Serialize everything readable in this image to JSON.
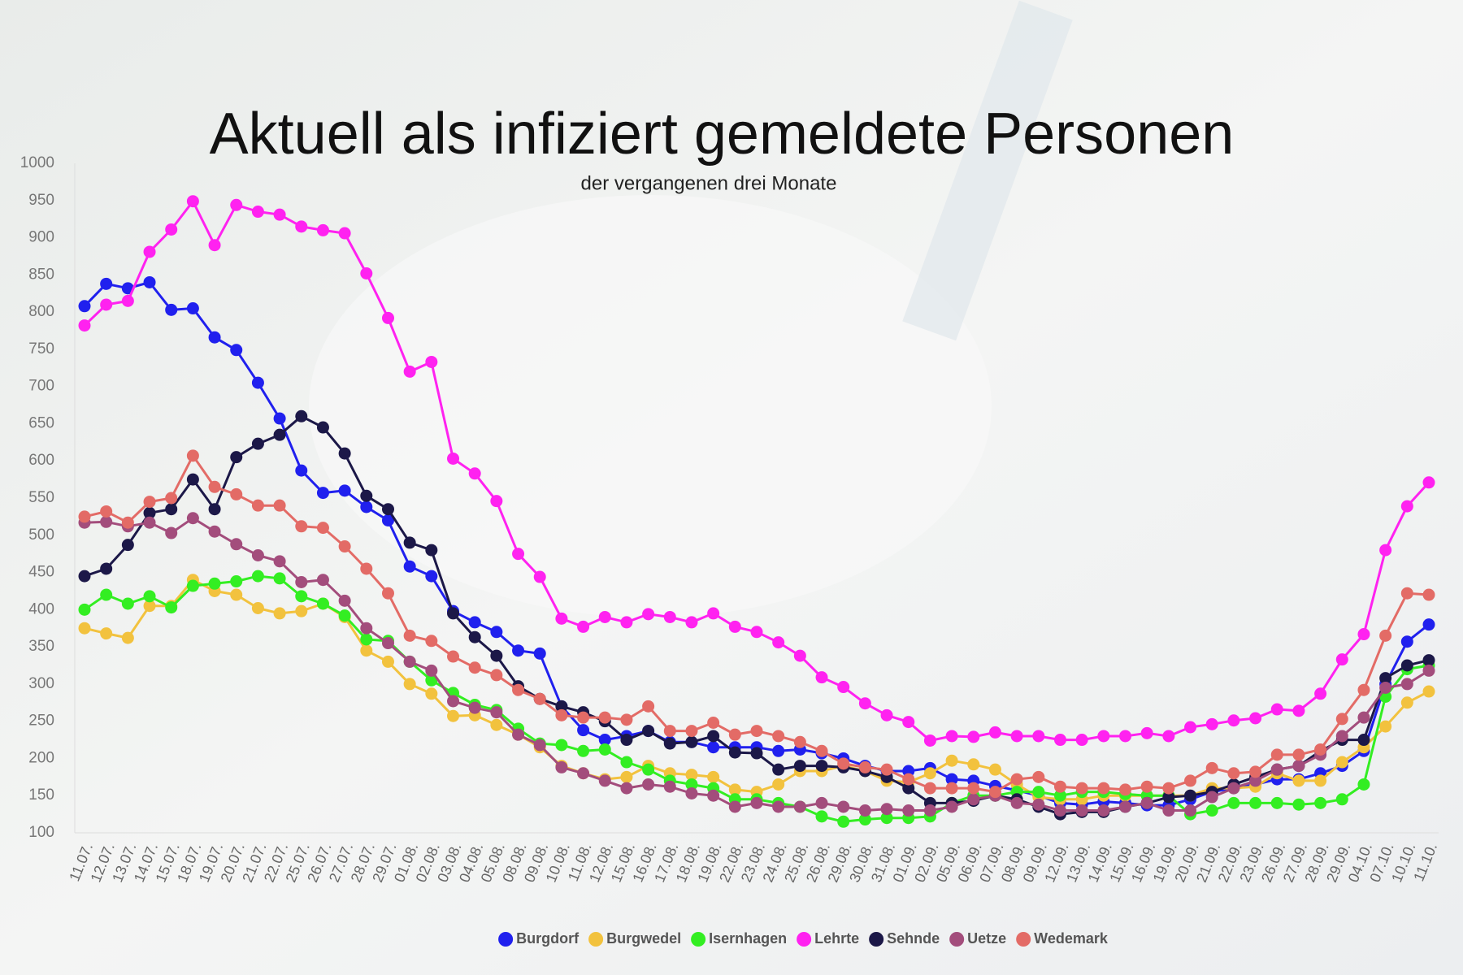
{
  "chart_data": {
    "type": "line",
    "title": "Aktuell als infiziert gemeldete Personen",
    "subtitle": "der vergangenen drei Monate",
    "categories": [
      "11.07.",
      "12.07.",
      "13.07.",
      "14.07.",
      "15.07.",
      "18.07.",
      "19.07.",
      "20.07.",
      "21.07.",
      "22.07.",
      "25.07.",
      "26.07.",
      "27.07.",
      "28.07.",
      "29.07.",
      "01.08.",
      "02.08.",
      "03.08.",
      "04.08.",
      "05.08.",
      "08.08.",
      "09.08.",
      "10.08.",
      "11.08.",
      "12.08.",
      "15.08.",
      "16.08.",
      "17.08.",
      "18.08.",
      "19.08.",
      "22.08.",
      "23.08.",
      "24.08.",
      "25.08.",
      "26.08.",
      "29.08.",
      "30.08.",
      "31.08.",
      "01.09.",
      "02.09.",
      "05.09.",
      "06.09.",
      "07.09.",
      "08.09.",
      "09.09.",
      "12.09.",
      "13.09.",
      "14.09.",
      "15.09.",
      "16.09.",
      "19.09.",
      "20.09.",
      "21.09.",
      "22.09.",
      "23.09.",
      "26.09.",
      "27.09.",
      "28.09.",
      "29.09.",
      "04.10.",
      "07.10.",
      "10.10.",
      "11.10."
    ],
    "series": [
      {
        "name": "Burgdorf",
        "color": "#2020ee",
        "values": [
          808,
          838,
          832,
          840,
          803,
          805,
          766,
          749,
          705,
          657,
          587,
          557,
          560,
          538,
          520,
          458,
          445,
          398,
          383,
          370,
          345,
          341,
          270,
          238,
          225,
          230,
          237,
          222,
          222,
          215,
          215,
          215,
          210,
          212,
          207,
          200,
          190,
          183,
          183,
          187,
          172,
          170,
          163,
          157,
          150,
          140,
          138,
          142,
          140,
          137,
          137,
          145,
          155,
          160,
          165,
          172,
          172,
          180,
          190,
          210,
          300,
          357,
          380
        ]
      },
      {
        "name": "Burgwedel",
        "color": "#f2c23e",
        "values": [
          375,
          368,
          362,
          405,
          405,
          440,
          425,
          420,
          402,
          395,
          398,
          408,
          390,
          345,
          330,
          300,
          287,
          257,
          258,
          245,
          232,
          215,
          190,
          180,
          172,
          175,
          190,
          180,
          178,
          175,
          158,
          155,
          165,
          183,
          183,
          190,
          183,
          170,
          168,
          180,
          197,
          192,
          185,
          165,
          148,
          145,
          145,
          150,
          150,
          150,
          150,
          150,
          160,
          160,
          162,
          180,
          170,
          170,
          195,
          215,
          243,
          275,
          290
        ]
      },
      {
        "name": "Isernhagen",
        "color": "#33ee22",
        "values": [
          400,
          420,
          408,
          418,
          403,
          432,
          435,
          438,
          445,
          442,
          418,
          408,
          392,
          360,
          358,
          330,
          305,
          288,
          272,
          265,
          240,
          220,
          218,
          210,
          212,
          195,
          185,
          170,
          165,
          160,
          145,
          145,
          140,
          135,
          122,
          115,
          118,
          120,
          120,
          122,
          140,
          150,
          150,
          155,
          155,
          150,
          155,
          155,
          152,
          150,
          150,
          125,
          130,
          140,
          140,
          140,
          138,
          140,
          145,
          165,
          283,
          320,
          325
        ]
      },
      {
        "name": "Lehrte",
        "color": "#ff22f0",
        "values": [
          782,
          810,
          815,
          881,
          911,
          949,
          890,
          944,
          935,
          931,
          915,
          910,
          906,
          852,
          792,
          720,
          733,
          603,
          583,
          546,
          475,
          444,
          388,
          377,
          390,
          383,
          394,
          390,
          383,
          395,
          377,
          370,
          356,
          338,
          309,
          296,
          274,
          258,
          249,
          224,
          230,
          229,
          235,
          230,
          230,
          225,
          225,
          230,
          230,
          234,
          230,
          242,
          246,
          251,
          254,
          266,
          264,
          287,
          333,
          367,
          480,
          539,
          571
        ]
      },
      {
        "name": "Sehnde",
        "color": "#1c1848",
        "values": [
          445,
          455,
          487,
          530,
          535,
          575,
          535,
          605,
          623,
          635,
          660,
          645,
          610,
          553,
          535,
          490,
          480,
          395,
          363,
          338,
          297,
          280,
          270,
          262,
          250,
          225,
          237,
          220,
          222,
          230,
          208,
          207,
          185,
          190,
          190,
          188,
          183,
          175,
          160,
          140,
          140,
          143,
          150,
          145,
          135,
          125,
          128,
          128,
          135,
          140,
          148,
          150,
          155,
          165,
          175,
          185,
          190,
          210,
          225,
          225,
          308,
          325,
          332
        ]
      },
      {
        "name": "Uetze",
        "color": "#a34d7c",
        "values": [
          517,
          518,
          512,
          517,
          503,
          523,
          505,
          488,
          473,
          465,
          437,
          440,
          412,
          375,
          355,
          330,
          318,
          277,
          268,
          262,
          232,
          218,
          188,
          180,
          170,
          160,
          165,
          162,
          153,
          150,
          135,
          140,
          135,
          135,
          140,
          135,
          130,
          132,
          130,
          130,
          135,
          145,
          150,
          140,
          138,
          130,
          130,
          130,
          135,
          140,
          130,
          130,
          148,
          160,
          170,
          185,
          190,
          205,
          230,
          255,
          295,
          300,
          318
        ]
      },
      {
        "name": "Wedemark",
        "color": "#e36b66",
        "values": [
          525,
          532,
          517,
          545,
          550,
          607,
          565,
          555,
          540,
          540,
          512,
          510,
          485,
          455,
          422,
          365,
          358,
          337,
          322,
          312,
          292,
          280,
          258,
          255,
          255,
          252,
          270,
          237,
          237,
          248,
          232,
          237,
          230,
          222,
          210,
          193,
          188,
          185,
          172,
          160,
          160,
          160,
          155,
          172,
          175,
          162,
          160,
          160,
          158,
          162,
          160,
          170,
          187,
          180,
          182,
          205,
          205,
          212,
          253,
          292,
          365,
          422,
          420
        ]
      }
    ],
    "ylim": [
      100,
      1000
    ],
    "yticks": [
      100,
      150,
      200,
      250,
      300,
      350,
      400,
      450,
      500,
      550,
      600,
      650,
      700,
      750,
      800,
      850,
      900,
      950,
      1000
    ],
    "grid": false,
    "legend": "bottom"
  }
}
